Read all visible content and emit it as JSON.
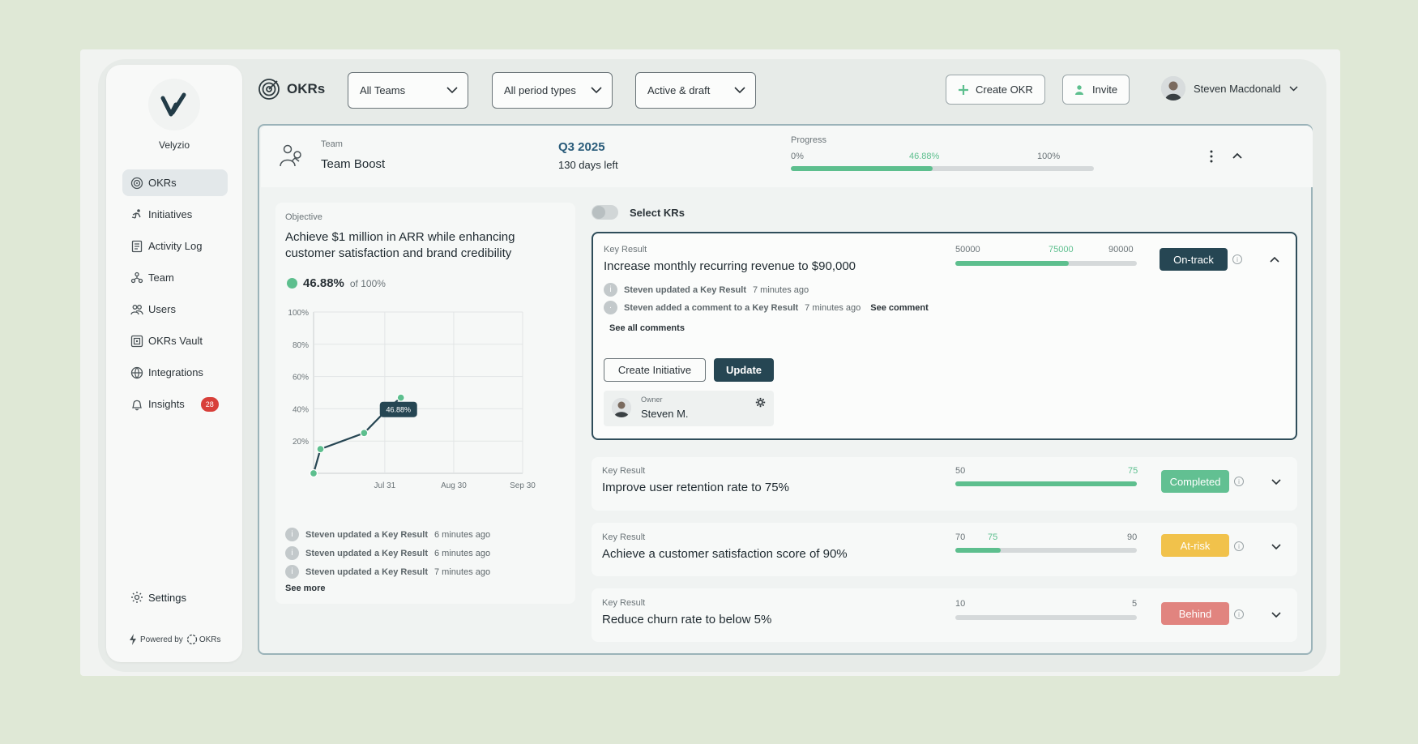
{
  "brand": {
    "name": "Velyzio"
  },
  "nav": {
    "items": [
      {
        "label": "OKRs",
        "icon": "target-icon"
      },
      {
        "label": "Initiatives",
        "icon": "initiatives-icon"
      },
      {
        "label": "Activity Log",
        "icon": "log-icon"
      },
      {
        "label": "Team",
        "icon": "team-icon"
      },
      {
        "label": "Users",
        "icon": "users-icon"
      },
      {
        "label": "OKRs Vault",
        "icon": "vault-icon"
      },
      {
        "label": "Integrations",
        "icon": "globe-icon"
      },
      {
        "label": "Insights",
        "icon": "bell-icon",
        "badge": "28"
      }
    ],
    "settings": "Settings",
    "powered_by": "Powered by",
    "powered_logo": "OKRs"
  },
  "header": {
    "title": "OKRs",
    "filters": [
      "All Teams",
      "All period types",
      "Active & draft"
    ],
    "create_okr": "Create OKR",
    "invite": "Invite",
    "user_name": "Steven Macdonald"
  },
  "team": {
    "label": "Team",
    "name": "Team Boost",
    "period": "Q3 2025",
    "days_left": "130 days left",
    "progress_label": "Progress",
    "progress_min": "0%",
    "progress_value": "46.88%",
    "progress_max": "100%",
    "progress_fraction": 0.4688
  },
  "objective": {
    "label": "Objective",
    "title": "Achieve $1 million in ARR while enhancing customer satisfaction and brand credibility",
    "percent": "46.88%",
    "of": "of 100%",
    "activity": [
      {
        "text": "Steven updated a Key Result",
        "time": "6 minutes ago"
      },
      {
        "text": "Steven updated a Key Result",
        "time": "6 minutes ago"
      },
      {
        "text": "Steven updated a Key Result",
        "time": "7 minutes ago"
      }
    ],
    "see_more": "See more"
  },
  "chart_data": {
    "type": "line",
    "y_ticks": [
      "100%",
      "80%",
      "60%",
      "40%",
      "20%"
    ],
    "x_ticks": [
      "Jul 31",
      "Aug 30",
      "Sep 30"
    ],
    "ylim": [
      0,
      100
    ],
    "points": [
      {
        "day": 0,
        "value": 0
      },
      {
        "day": 3,
        "value": 15
      },
      {
        "day": 22,
        "value": 25
      },
      {
        "day": 33,
        "value": 41
      },
      {
        "day": 38,
        "value": 46.88
      }
    ],
    "tooltip": "46.88%"
  },
  "select_krs": "Select KRs",
  "key_results": [
    {
      "label": "Key Result",
      "title": "Increase monthly recurring revenue to $90,000",
      "start": "50000",
      "current": "75000",
      "target": "90000",
      "fraction": 0.625,
      "status": "On-track",
      "status_color": "#264653",
      "expanded": true
    },
    {
      "label": "Key Result",
      "title": "Improve user retention rate to 75%",
      "start": "50",
      "current": "",
      "target": "75",
      "fraction": 1.0,
      "status": "Completed",
      "status_color": "#62c092"
    },
    {
      "label": "Key Result",
      "title": "Achieve a customer satisfaction score of 90%",
      "start": "70",
      "current": "75",
      "target": "90",
      "fraction": 0.25,
      "status": "At-risk",
      "status_color": "#f1c24b"
    },
    {
      "label": "Key Result",
      "title": "Reduce churn rate to below 5%",
      "start": "10",
      "current": "",
      "target": "5",
      "fraction": 0,
      "status": "Behind",
      "status_color": "#e1847f"
    }
  ],
  "kr_detail": {
    "activity_1": "Steven updated a Key Result",
    "activity_1_time": "7 minutes ago",
    "activity_2": "Steven added a comment to a Key Result",
    "activity_2_time": "7 minutes ago",
    "see_comment": "See comment",
    "see_all_comments": "See all comments",
    "create_initiative": "Create Initiative",
    "update": "Update",
    "owner_label": "Owner",
    "owner_name": "Steven M."
  }
}
